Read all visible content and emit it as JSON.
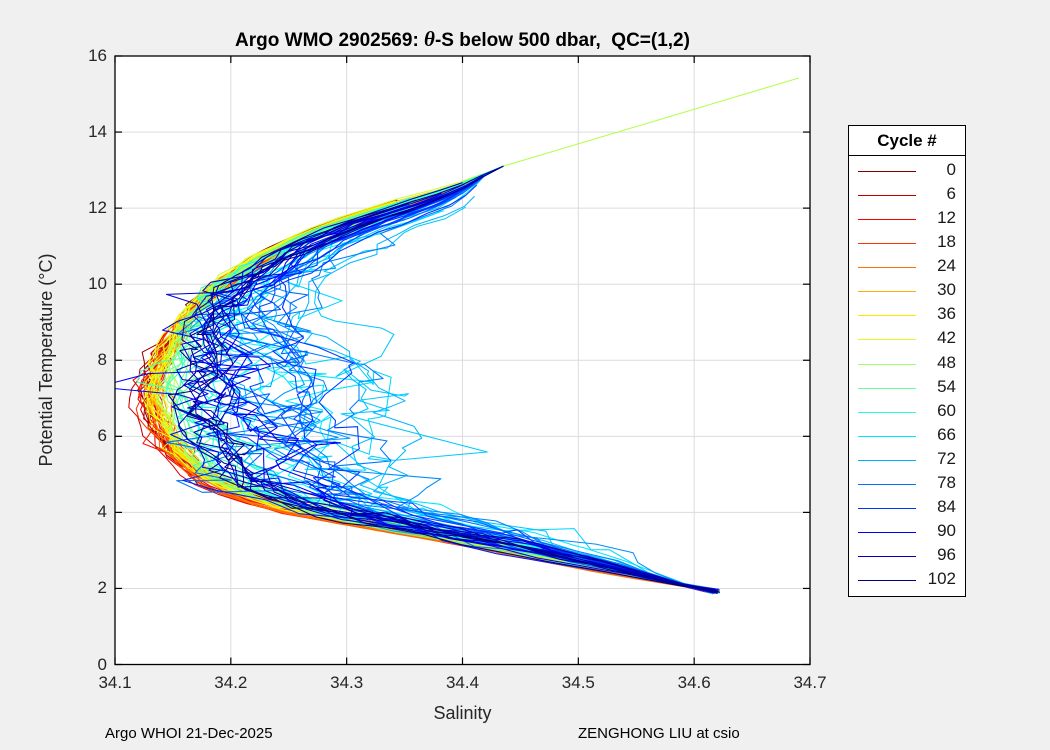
{
  "window": {
    "background": "#f0f0f0"
  },
  "title": {
    "prefix": "Argo WMO 2902569: ",
    "theta": "θ",
    "suffix": "-S below 500 dbar,  QC=(1,2)"
  },
  "axes": {
    "xlabel": "Salinity",
    "ylabel": "Potential Temperature (°C)",
    "xtick_labels": [
      "34.1",
      "34.2",
      "34.3",
      "34.4",
      "34.5",
      "34.6",
      "34.7"
    ],
    "ytick_labels": [
      "0",
      "2",
      "4",
      "6",
      "8",
      "10",
      "12",
      "14",
      "16"
    ]
  },
  "legend": {
    "title": "Cycle #",
    "entries": [
      {
        "label": "0",
        "color": "#800000"
      },
      {
        "label": "6",
        "color": "#bb0000"
      },
      {
        "label": "12",
        "color": "#f80000"
      },
      {
        "label": "18",
        "color": "#ff3500"
      },
      {
        "label": "24",
        "color": "#ff7100"
      },
      {
        "label": "30",
        "color": "#ffad00"
      },
      {
        "label": "36",
        "color": "#ffe900"
      },
      {
        "label": "42",
        "color": "#daff26"
      },
      {
        "label": "48",
        "color": "#9eff62"
      },
      {
        "label": "54",
        "color": "#62ff9e"
      },
      {
        "label": "60",
        "color": "#26ffda"
      },
      {
        "label": "66",
        "color": "#00e9ff"
      },
      {
        "label": "72",
        "color": "#00adff"
      },
      {
        "label": "78",
        "color": "#0071ff"
      },
      {
        "label": "84",
        "color": "#0035ff"
      },
      {
        "label": "90",
        "color": "#0000f8"
      },
      {
        "label": "96",
        "color": "#0000bb"
      },
      {
        "label": "102",
        "color": "#000080"
      }
    ]
  },
  "footer": {
    "left": "Argo WHOI 21-Dec-2025",
    "right": "ZENGHONG LIU at csio"
  },
  "colors": {
    "figure_bg": "#f0f0f0",
    "plot_bg": "#ffffff",
    "grid": "#dcdcdc",
    "axis": "#000000",
    "text": "#1a1a1a"
  },
  "chart_data": {
    "type": "line",
    "title": "Argo WMO 2902569: θ-S below 500 dbar, QC=(1,2)",
    "xlabel": "Salinity",
    "ylabel": "Potential Temperature (°C)",
    "xlim": [
      34.1,
      34.7
    ],
    "ylim": [
      0,
      16
    ],
    "xticks": [
      34.1,
      34.2,
      34.3,
      34.4,
      34.5,
      34.6,
      34.7
    ],
    "yticks": [
      0,
      2,
      4,
      6,
      8,
      10,
      12,
      14,
      16
    ],
    "grid": true,
    "legend_position": "right-outside",
    "legend_title": "Cycle #",
    "n_profiles": 103,
    "cycle_range": [
      0,
      102
    ],
    "legend_cycles": [
      0,
      6,
      12,
      18,
      24,
      30,
      36,
      42,
      48,
      54,
      60,
      66,
      72,
      78,
      84,
      90,
      96,
      102
    ],
    "colormap": "jet_reversed (cycle 0 = dark red, cycle 102 = dark navy)",
    "description": "Theta-S curves for ~103 Argo float cycles below 500 dbar; wedge shape converging near (34.435, 13.1) at top and at the deep tip (34.62, 1.9); salinity minimum ~34.12-34.14 near 7.5 degC; later (blue) cycles shifted saltier with large zigzag scatter in mid range; early (red) cycles hug the fresh left edge.",
    "convergence_top": [
      34.435,
      13.1
    ],
    "convergence_tip": [
      34.62,
      1.9
    ],
    "outlier_line": {
      "cycle": 46,
      "from": [
        34.435,
        13.1
      ],
      "to": [
        34.69,
        15.42
      ]
    },
    "mean_profile": {
      "theta": [
        13.1,
        12.5,
        12.0,
        11.5,
        11.0,
        10.5,
        10.0,
        9.5,
        9.0,
        8.5,
        8.0,
        7.5,
        7.0,
        6.5,
        6.0,
        5.5,
        5.0,
        4.7,
        4.4,
        4.1,
        3.8,
        3.5,
        3.2,
        2.9,
        2.6,
        2.3,
        2.0,
        1.88
      ],
      "salinity": [
        34.435,
        34.39,
        34.335,
        34.285,
        34.245,
        34.215,
        34.19,
        34.172,
        34.158,
        34.148,
        34.14,
        34.135,
        34.136,
        34.14,
        34.148,
        34.158,
        34.176,
        34.193,
        34.218,
        34.253,
        34.305,
        34.36,
        34.415,
        34.465,
        34.515,
        34.56,
        34.603,
        34.618
      ]
    },
    "spread_envelope": {
      "theta": [
        12,
        11,
        10,
        9,
        8,
        7,
        6,
        5,
        4,
        3,
        2.5
      ],
      "s_min": [
        34.3,
        34.25,
        34.17,
        34.16,
        34.13,
        34.12,
        34.13,
        34.17,
        34.24,
        34.43,
        34.52
      ],
      "s_max": [
        34.36,
        34.31,
        34.27,
        34.42,
        34.45,
        34.44,
        34.43,
        34.4,
        34.42,
        34.52,
        34.58
      ]
    }
  }
}
